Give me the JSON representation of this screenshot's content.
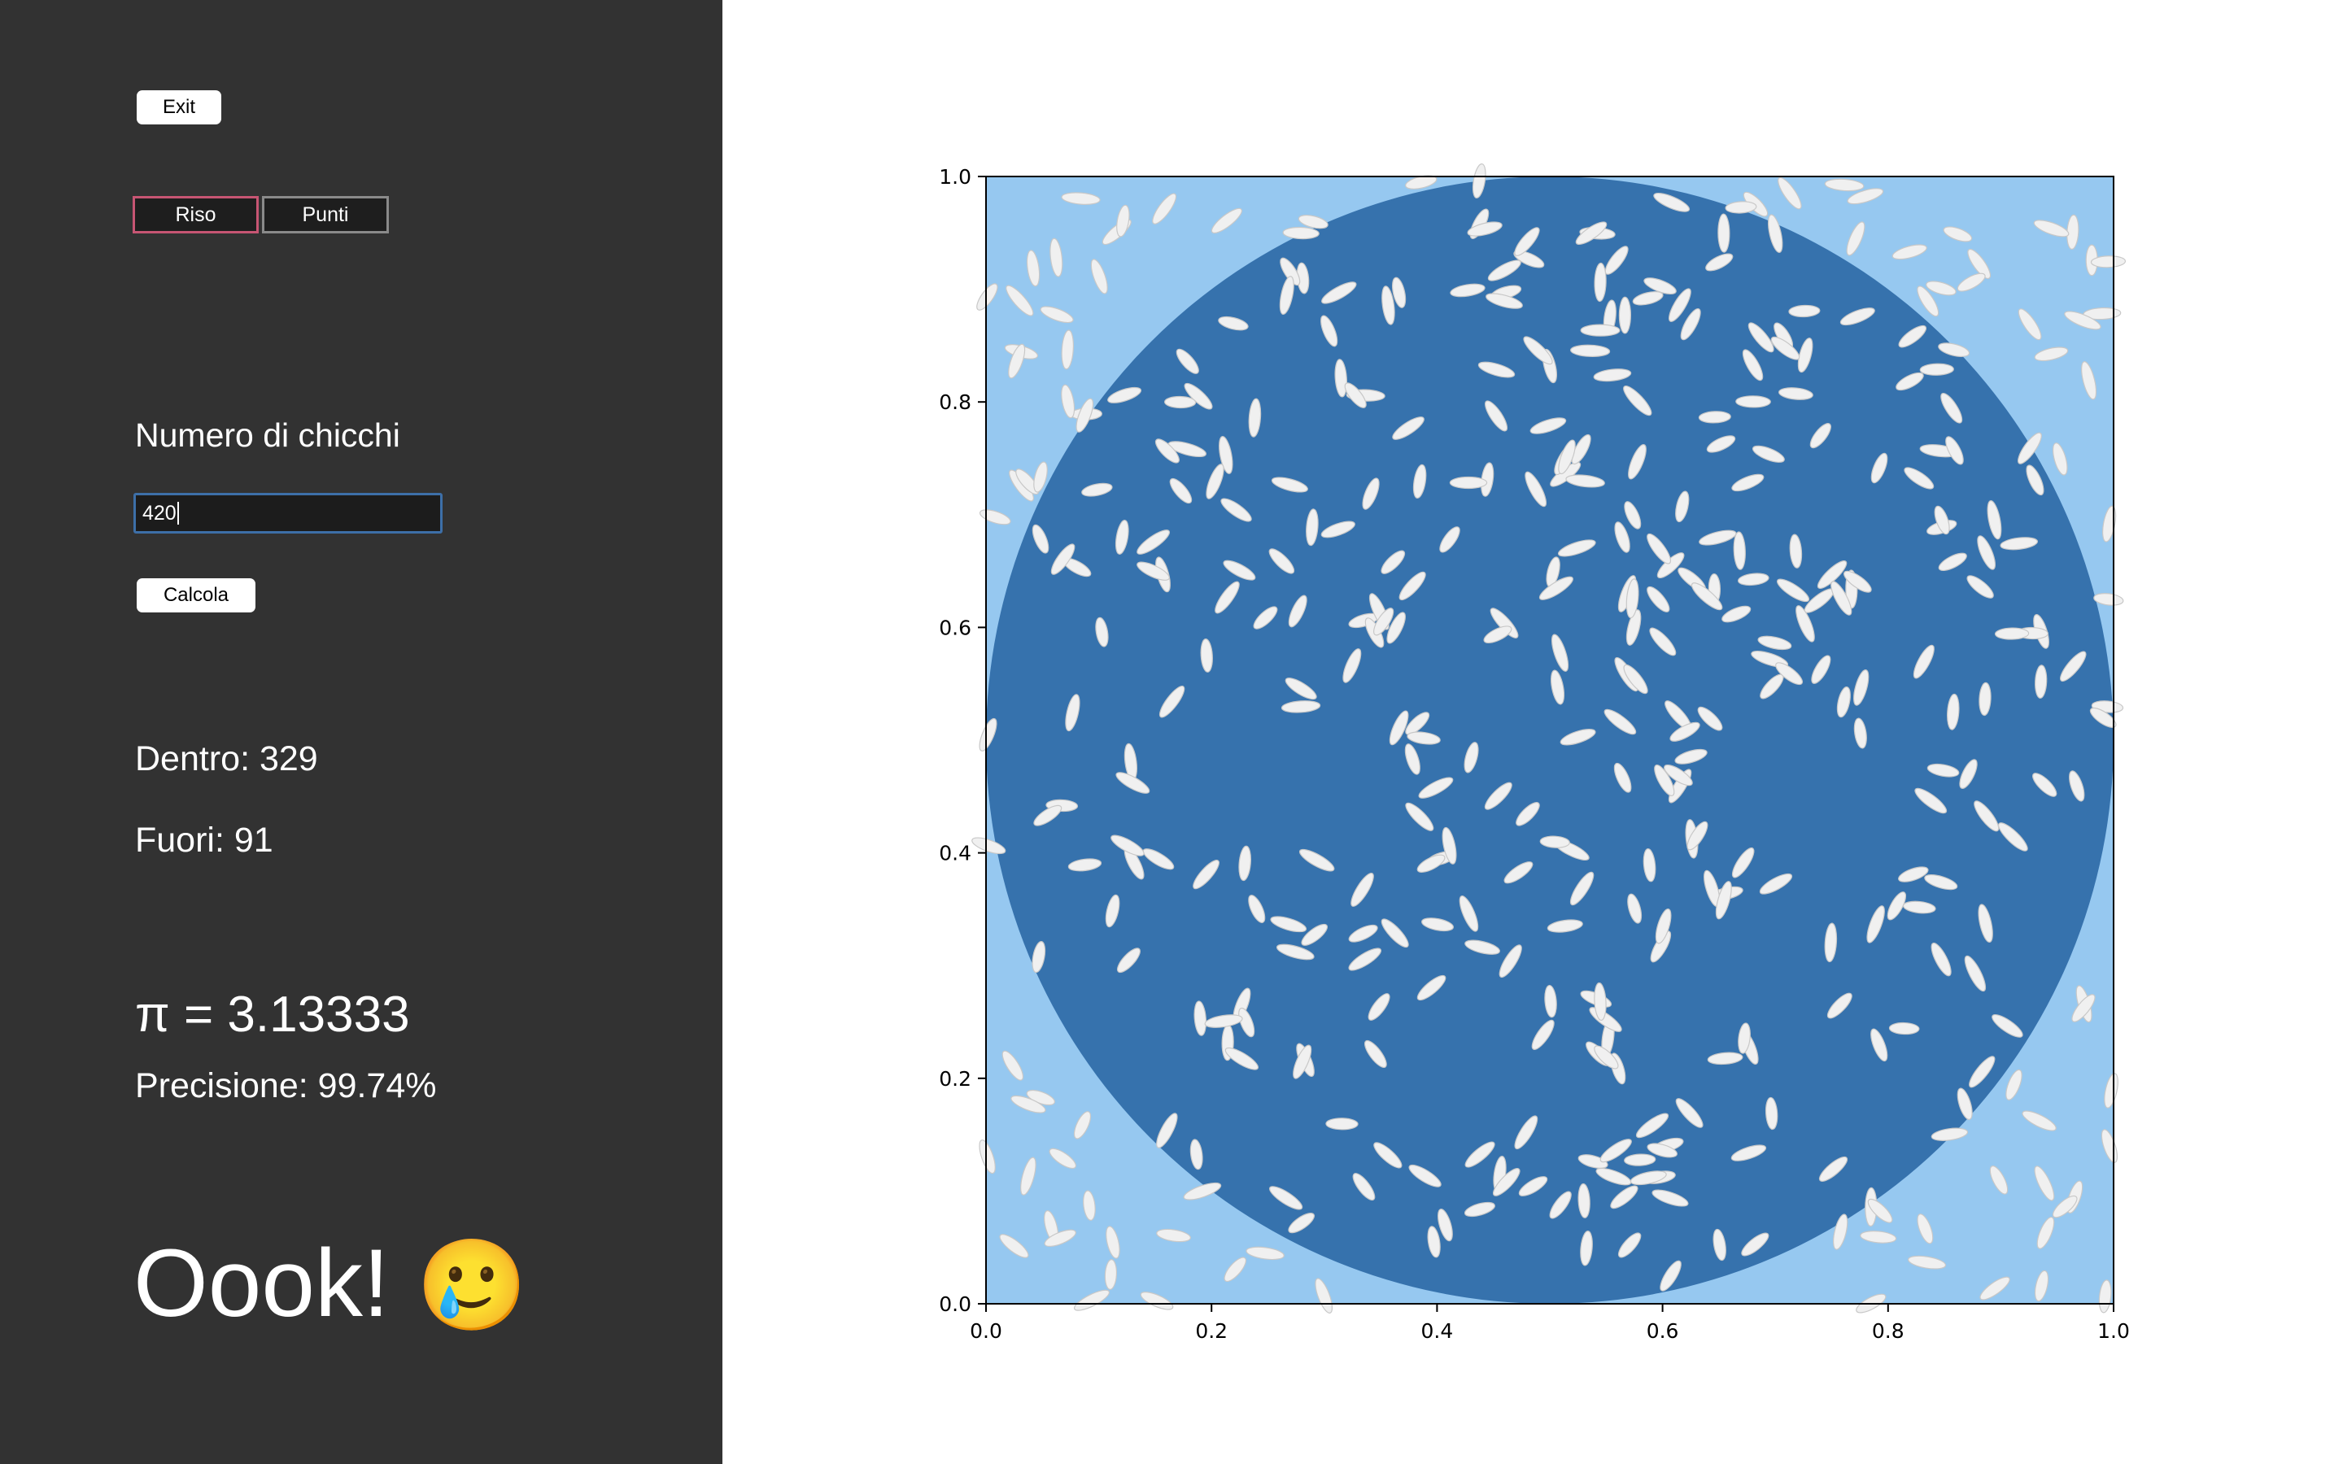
{
  "buttons": {
    "exit_label": "Exit",
    "calculate_label": "Calcola"
  },
  "mode_tabs": [
    {
      "label": "Riso",
      "active": true
    },
    {
      "label": "Punti",
      "active": false
    }
  ],
  "grains_input": {
    "label": "Numero di chicchi",
    "value": "420"
  },
  "results": {
    "inside": "Dentro: 329",
    "outside": "Fuori: 91",
    "pi": "π = 3.13333",
    "precision": "Precisione: 99.74%"
  },
  "verdict": {
    "text": "Oook!",
    "emoji": "🥲"
  },
  "colors": {
    "sidebar_bg": "#323232",
    "square_fill": "#96c8f0",
    "circle_fill": "#3672ad",
    "grain": "#f0f0f0",
    "active_tab_border": "#c75573",
    "input_border": "#3d6fa8"
  },
  "chart_data": {
    "type": "scatter",
    "title": "",
    "xlabel": "",
    "ylabel": "",
    "xlim": [
      0,
      1
    ],
    "ylim": [
      0,
      1
    ],
    "x_ticks": [
      "0.0",
      "0.2",
      "0.4",
      "0.6",
      "0.8",
      "1.0"
    ],
    "y_ticks": [
      "0.0",
      "0.2",
      "0.4",
      "0.6",
      "0.8",
      "1.0"
    ],
    "grid": false,
    "legend": "none",
    "shapes": [
      {
        "kind": "square",
        "from": [
          0,
          0
        ],
        "to": [
          1,
          1
        ],
        "fill": "#96c8f0"
      },
      {
        "kind": "circle",
        "center": [
          0.5,
          0.5
        ],
        "radius": 0.5,
        "fill": "#3672ad"
      }
    ],
    "series": [
      {
        "marker": "rice-grain",
        "count": 420,
        "inside": 329,
        "outside": 91
      }
    ]
  }
}
